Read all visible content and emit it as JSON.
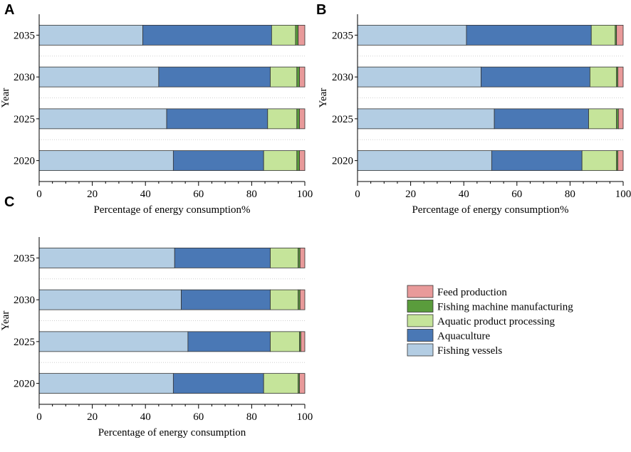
{
  "chart_data": [
    {
      "panel": "A",
      "type": "bar",
      "orientation": "horizontal",
      "stacked": true,
      "categories": [
        "2035",
        "2030",
        "2025",
        "2020"
      ],
      "series": [
        {
          "name": "Fishing vessels",
          "color": "#b3cde3",
          "values": [
            39,
            45,
            48,
            50.5
          ]
        },
        {
          "name": "Aquaculture",
          "color": "#4a78b5",
          "values": [
            48.5,
            42,
            38,
            34
          ]
        },
        {
          "name": "Aquatic product processing",
          "color": "#c5e49a",
          "values": [
            9,
            10,
            11,
            12.5
          ]
        },
        {
          "name": "Fishing machine manufacturing",
          "color": "#5a9c3c",
          "values": [
            1,
            1,
            1,
            1
          ]
        },
        {
          "name": "Feed production",
          "color": "#e89a9a",
          "values": [
            2.5,
            2,
            2,
            2
          ]
        }
      ],
      "xlabel": "Percentage of energy consumption%",
      "ylabel": "Year",
      "xlim": [
        0,
        100
      ],
      "xticks": [
        "0",
        "20",
        "40",
        "60",
        "80",
        "100"
      ]
    },
    {
      "panel": "B",
      "type": "bar",
      "orientation": "horizontal",
      "stacked": true,
      "categories": [
        "2035",
        "2030",
        "2025",
        "2020"
      ],
      "series": [
        {
          "name": "Fishing vessels",
          "color": "#b3cde3",
          "values": [
            41,
            46.5,
            51.5,
            50.5
          ]
        },
        {
          "name": "Aquaculture",
          "color": "#4a78b5",
          "values": [
            47,
            41,
            35.5,
            34
          ]
        },
        {
          "name": "Aquatic product processing",
          "color": "#c5e49a",
          "values": [
            9,
            10,
            10.5,
            13
          ]
        },
        {
          "name": "Fishing machine manufacturing",
          "color": "#5a9c3c",
          "values": [
            0.5,
            0.5,
            0.7,
            0.5
          ]
        },
        {
          "name": "Feed production",
          "color": "#e89a9a",
          "values": [
            2.5,
            2,
            1.8,
            2
          ]
        }
      ],
      "xlabel": "Percentage of energy consumption%",
      "ylabel": "Year",
      "xlim": [
        0,
        100
      ],
      "xticks": [
        "0",
        "20",
        "40",
        "60",
        "80",
        "100"
      ]
    },
    {
      "panel": "C",
      "type": "bar",
      "orientation": "horizontal",
      "stacked": true,
      "categories": [
        "2035",
        "2030",
        "2025",
        "2020"
      ],
      "series": [
        {
          "name": "Fishing vessels",
          "color": "#b3cde3",
          "values": [
            51,
            53.5,
            56,
            50.5
          ]
        },
        {
          "name": "Aquaculture",
          "color": "#4a78b5",
          "values": [
            36,
            33.5,
            31,
            34
          ]
        },
        {
          "name": "Aquatic product processing",
          "color": "#c5e49a",
          "values": [
            10.5,
            10.5,
            11,
            13
          ]
        },
        {
          "name": "Fishing machine manufacturing",
          "color": "#5a9c3c",
          "values": [
            0.7,
            0.7,
            0.5,
            0.5
          ]
        },
        {
          "name": "Feed production",
          "color": "#e89a9a",
          "values": [
            1.8,
            1.8,
            1.5,
            2
          ]
        }
      ],
      "xlabel": "Percentage of energy consumption",
      "ylabel": "Year",
      "xlim": [
        0,
        100
      ],
      "xticks": [
        "0",
        "20",
        "40",
        "60",
        "80",
        "100"
      ]
    }
  ],
  "legend": {
    "items": [
      {
        "name": "Feed production",
        "color": "#e89a9a"
      },
      {
        "name": "Fishing machine manufacturing",
        "color": "#5a9c3c"
      },
      {
        "name": "Aquatic product processing",
        "color": "#c5e49a"
      },
      {
        "name": "Aquaculture",
        "color": "#4a78b5"
      },
      {
        "name": "Fishing vessels",
        "color": "#b3cde3"
      }
    ]
  }
}
